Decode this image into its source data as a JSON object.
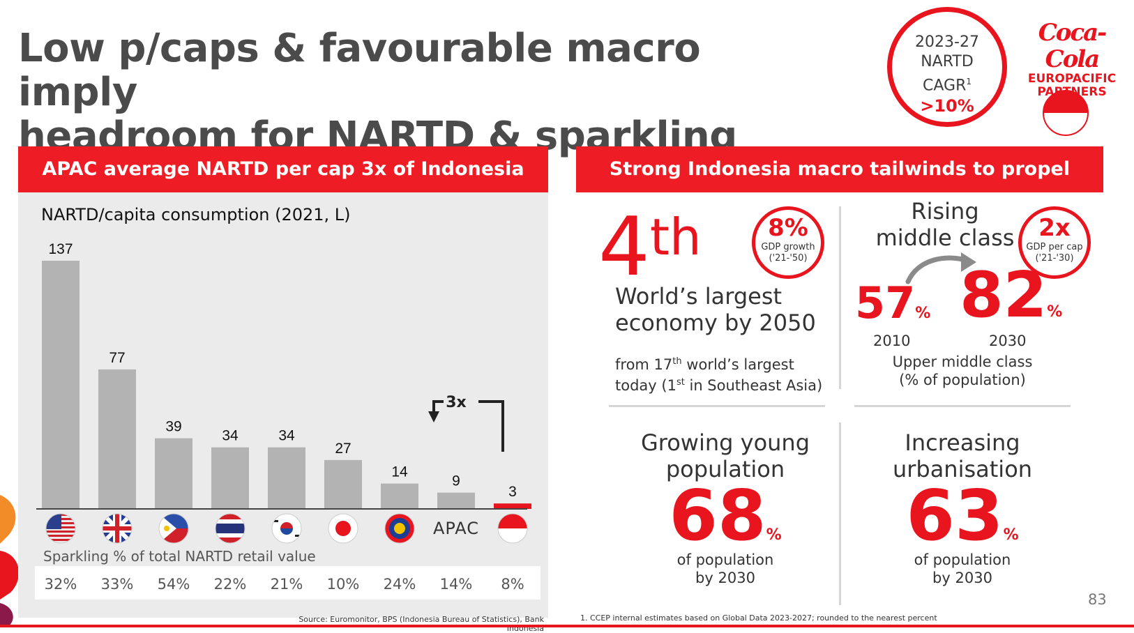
{
  "title": {
    "line1": "Low p/caps & favourable macro imply",
    "line2": "headroom for NARTD & sparkling"
  },
  "cagr_badge": {
    "line1": "2023-27",
    "line2": "NARTD",
    "line3": "CAGR",
    "sup": "1",
    "value": ">10%"
  },
  "logo": {
    "script": "Coca-Cola",
    "line1": "EUROPACIFIC",
    "line2": "PARTNERS"
  },
  "left_banner": "APAC average NARTD per cap 3x of Indonesia",
  "right_banner": "Strong Indonesia macro tailwinds to propel growth",
  "chart_data": {
    "type": "bar",
    "title": "NARTD/capita consumption (2021, L)",
    "categories": [
      "United States",
      "United Kingdom",
      "Philippines",
      "Thailand",
      "South Korea",
      "Japan",
      "ASEAN",
      "APAC",
      "Indonesia"
    ],
    "values": [
      137,
      77,
      39,
      34,
      34,
      27,
      14,
      9,
      3
    ],
    "highlight": "Indonesia",
    "highlight_color": "#e8141e",
    "bar_color": "#b3b3b3",
    "apac_label": "APAC",
    "annotation": "3x",
    "ylim": [
      0,
      137
    ],
    "secondary_row": {
      "label": "Sparkling % of total NARTD retail value",
      "values": [
        "32%",
        "33%",
        "54%",
        "22%",
        "21%",
        "10%",
        "24%",
        "14%",
        "8%"
      ]
    }
  },
  "source": "Source: Euromonitor, BPS (Indonesia Bureau of Statistics), Bank Indonesia",
  "footnote": "1.   CCEP internal estimates based on Global Data 2023-2027; rounded to the nearest percent",
  "page_number": "83",
  "quad1": {
    "rank": "4",
    "rank_suffix": "th",
    "badge_value": "8%",
    "badge_line1": "GDP growth",
    "badge_line2": "('21-'50)",
    "line1": "World’s largest",
    "line2": "economy by 2050",
    "sub1_a": "from 17",
    "sub1_sup": "th",
    "sub1_b": " world’s largest",
    "sub2_a": "today (1",
    "sub2_sup": "st",
    "sub2_b": " in Southeast Asia)"
  },
  "quad2": {
    "line1": "Rising",
    "line2": "middle class",
    "badge_value": "2x",
    "badge_line1": "GDP per cap",
    "badge_line2": "('21-'30)",
    "from_value": "57",
    "to_value": "82",
    "pct": "%",
    "from_year": "2010",
    "to_year": "2030",
    "caption1": "Upper middle class",
    "caption2": "(% of population)"
  },
  "quad3": {
    "line1": "Growing young",
    "line2": "population",
    "value": "68",
    "pct": "%",
    "caption1": "of population",
    "caption2": "by 2030"
  },
  "quad4": {
    "line1": "Increasing",
    "line2": "urbanisation",
    "value": "63",
    "pct": "%",
    "caption1": "of population",
    "caption2": "by 2030"
  }
}
